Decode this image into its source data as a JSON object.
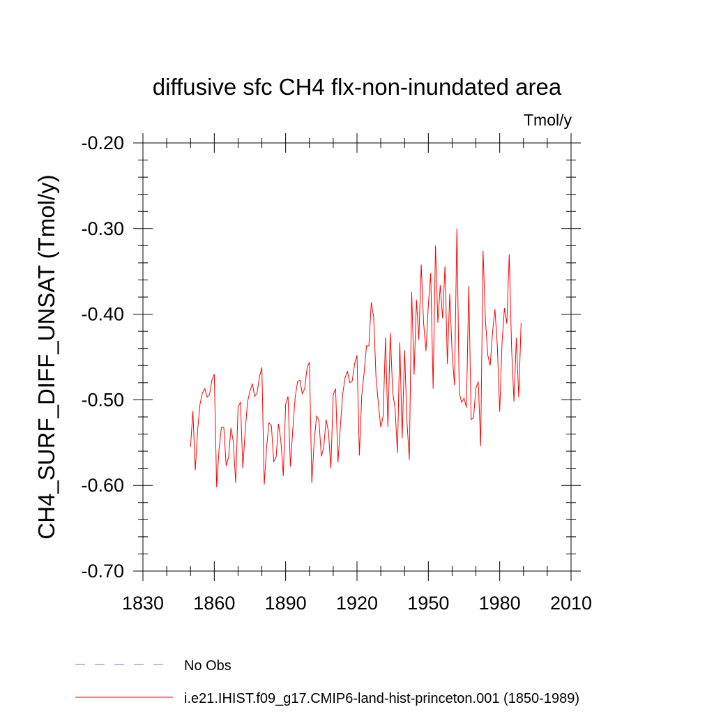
{
  "chart_data": {
    "type": "line",
    "title": "diffusive sfc CH4 flx-non-inundated area",
    "units_label": "Tmol/y",
    "ylabel": "CH4_SURF_DIFF_UNSAT  (Tmol/y)",
    "xlabel": "",
    "xlim": [
      1830,
      2010
    ],
    "ylim": [
      -0.7,
      -0.2
    ],
    "x_ticks": [
      1830,
      1860,
      1890,
      1920,
      1950,
      1980,
      2010
    ],
    "x_tick_labels": [
      "1830",
      "1860",
      "1890",
      "1920",
      "1950",
      "1980",
      "2010"
    ],
    "y_ticks": [
      -0.7,
      -0.6,
      -0.5,
      -0.4,
      -0.3,
      -0.2
    ],
    "y_tick_labels": [
      "-0.70",
      "-0.60",
      "-0.50",
      "-0.40",
      "-0.30",
      "-0.20"
    ],
    "grid": false,
    "legend_position": "bottom-left",
    "series": [
      {
        "name": "i.e21.IHIST.f09_g17.CMIP6-land-hist-princeton.001 (1850-1989)",
        "color": "#ff0000",
        "style": "solid",
        "x_start": 1850,
        "x_end": 1989,
        "values": [
          -0.555,
          -0.513,
          -0.582,
          -0.535,
          -0.505,
          -0.492,
          -0.487,
          -0.497,
          -0.494,
          -0.477,
          -0.47,
          -0.602,
          -0.558,
          -0.532,
          -0.532,
          -0.577,
          -0.567,
          -0.533,
          -0.549,
          -0.597,
          -0.508,
          -0.503,
          -0.58,
          -0.536,
          -0.502,
          -0.49,
          -0.481,
          -0.496,
          -0.492,
          -0.473,
          -0.462,
          -0.599,
          -0.555,
          -0.527,
          -0.53,
          -0.572,
          -0.567,
          -0.528,
          -0.548,
          -0.589,
          -0.505,
          -0.496,
          -0.578,
          -0.535,
          -0.497,
          -0.479,
          -0.477,
          -0.493,
          -0.487,
          -0.463,
          -0.456,
          -0.597,
          -0.549,
          -0.519,
          -0.524,
          -0.566,
          -0.556,
          -0.523,
          -0.537,
          -0.58,
          -0.494,
          -0.487,
          -0.573,
          -0.531,
          -0.493,
          -0.474,
          -0.467,
          -0.48,
          -0.478,
          -0.458,
          -0.448,
          -0.565,
          -0.495,
          -0.468,
          -0.437,
          -0.437,
          -0.386,
          -0.403,
          -0.474,
          -0.505,
          -0.532,
          -0.519,
          -0.427,
          -0.532,
          -0.422,
          -0.491,
          -0.51,
          -0.562,
          -0.433,
          -0.545,
          -0.442,
          -0.525,
          -0.57,
          -0.374,
          -0.471,
          -0.383,
          -0.43,
          -0.342,
          -0.41,
          -0.443,
          -0.389,
          -0.352,
          -0.487,
          -0.32,
          -0.41,
          -0.366,
          -0.405,
          -0.344,
          -0.458,
          -0.376,
          -0.446,
          -0.483,
          -0.3,
          -0.492,
          -0.503,
          -0.498,
          -0.509,
          -0.367,
          -0.523,
          -0.521,
          -0.486,
          -0.479,
          -0.554,
          -0.326,
          -0.407,
          -0.448,
          -0.46,
          -0.421,
          -0.394,
          -0.437,
          -0.514,
          -0.432,
          -0.393,
          -0.411,
          -0.33,
          -0.44,
          -0.502,
          -0.428,
          -0.497,
          -0.41
        ]
      }
    ],
    "reference": {
      "name": "No Obs",
      "color": "#7a74c8",
      "style": "dashed"
    }
  }
}
